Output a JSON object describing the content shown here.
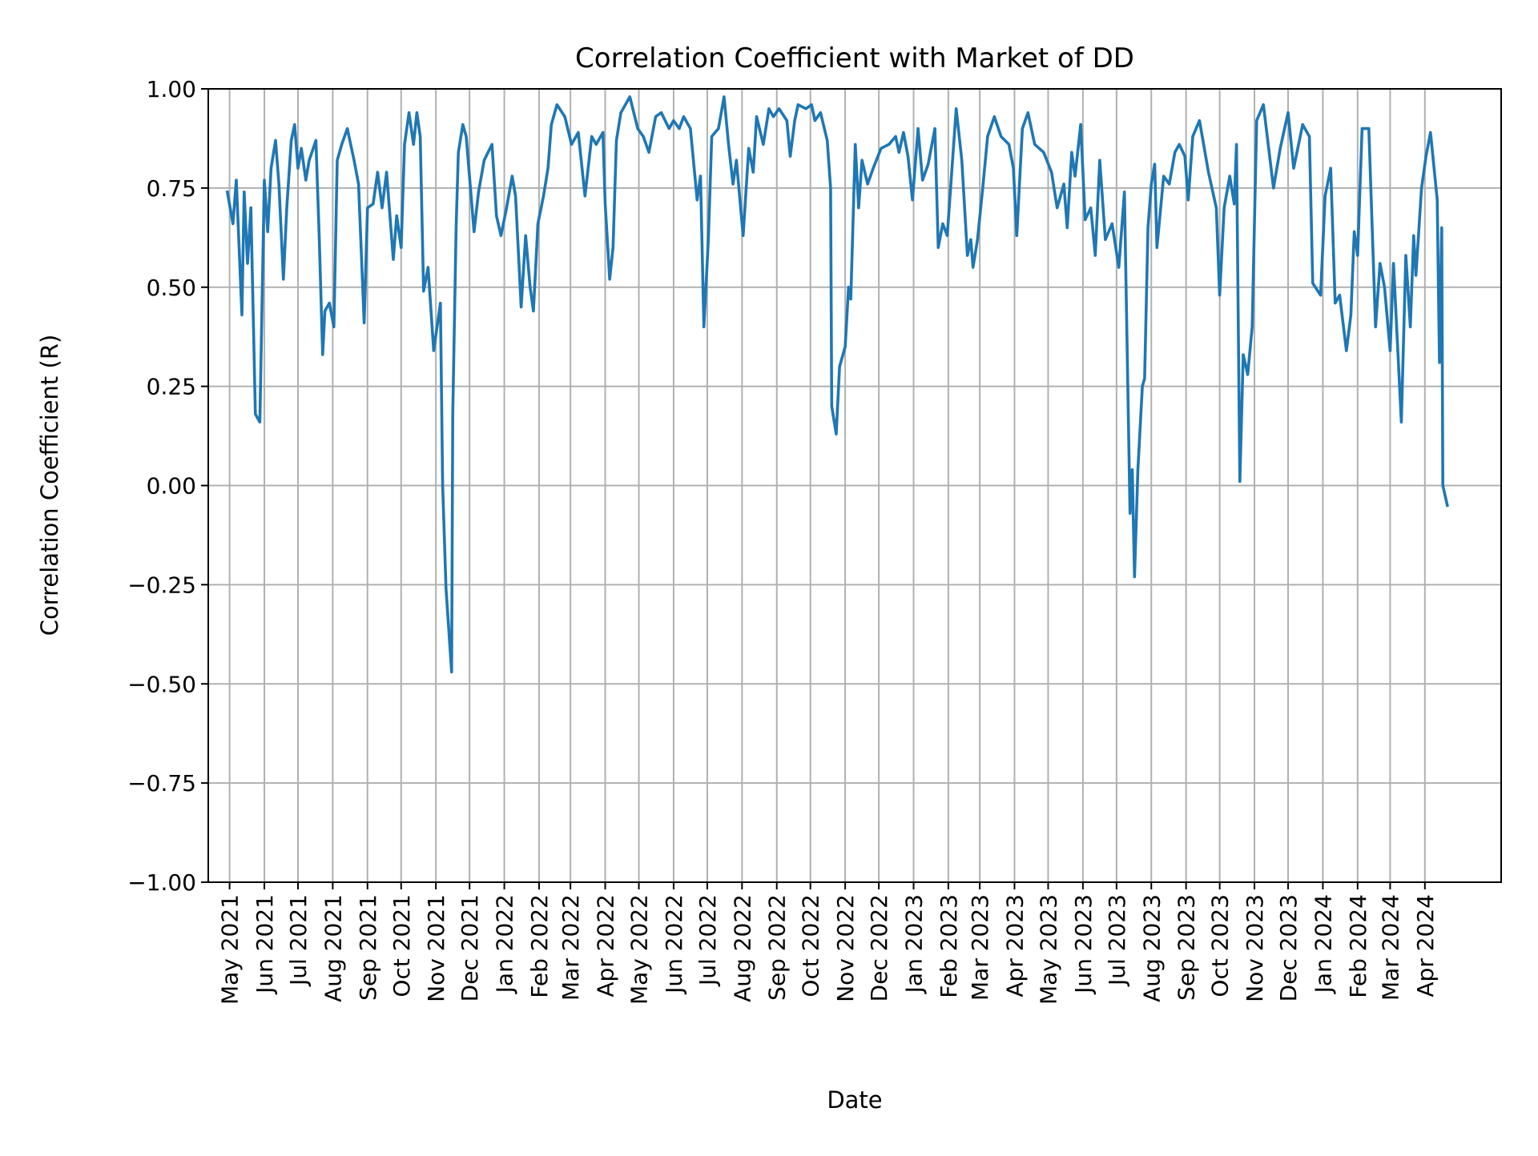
{
  "chart_data": {
    "type": "line",
    "title": "Correlation Coefficient with Market of DD",
    "xlabel": "Date",
    "ylabel": "Correlation Coefficient (R)",
    "ylim": [
      -1.0,
      1.0
    ],
    "yticks": [
      "−1.00",
      "−0.75",
      "−0.50",
      "−0.25",
      "0.00",
      "0.25",
      "0.50",
      "0.75",
      "1.00"
    ],
    "ytick_values": [
      -1.0,
      -0.75,
      -0.5,
      -0.25,
      0.0,
      0.25,
      0.5,
      0.75,
      1.0
    ],
    "xticks": [
      "May 2021",
      "Jun 2021",
      "Jul 2021",
      "Aug 2021",
      "Sep 2021",
      "Oct 2021",
      "Nov 2021",
      "Dec 2021",
      "Jan 2022",
      "Feb 2022",
      "Mar 2022",
      "Apr 2022",
      "May 2022",
      "Jun 2022",
      "Jul 2022",
      "Aug 2022",
      "Sep 2022",
      "Oct 2022",
      "Nov 2022",
      "Dec 2022",
      "Jan 2023",
      "Feb 2023",
      "Mar 2023",
      "Apr 2023",
      "May 2023",
      "Jun 2023",
      "Jul 2023",
      "Aug 2023",
      "Sep 2023",
      "Oct 2023",
      "Nov 2023",
      "Dec 2023",
      "Jan 2024",
      "Feb 2024",
      "Mar 2024",
      "Apr 2024"
    ],
    "xtick_dates": [
      "2021-05-01",
      "2021-06-01",
      "2021-07-01",
      "2021-08-01",
      "2021-09-01",
      "2021-10-01",
      "2021-11-01",
      "2021-12-01",
      "2022-01-01",
      "2022-02-01",
      "2022-03-01",
      "2022-04-01",
      "2022-05-01",
      "2022-06-01",
      "2022-07-01",
      "2022-08-01",
      "2022-09-01",
      "2022-10-01",
      "2022-11-01",
      "2022-12-01",
      "2023-01-01",
      "2023-02-01",
      "2023-03-01",
      "2023-04-01",
      "2023-05-01",
      "2023-06-01",
      "2023-07-01",
      "2023-08-01",
      "2023-09-01",
      "2023-10-01",
      "2023-11-01",
      "2023-12-01",
      "2024-01-01",
      "2024-02-01",
      "2024-03-01",
      "2024-04-01"
    ],
    "xlim": [
      "2021-04-12",
      "2024-06-08"
    ],
    "grid": true,
    "line_color": "#1f77b4",
    "grid_color": "#b0b0b0",
    "series": [
      {
        "x": [
          "2021-04-29",
          "2021-05-04",
          "2021-05-07",
          "2021-05-12",
          "2021-05-14",
          "2021-05-17",
          "2021-05-20",
          "2021-05-24",
          "2021-05-28",
          "2021-06-01",
          "2021-06-04",
          "2021-06-07",
          "2021-06-11",
          "2021-06-14",
          "2021-06-18",
          "2021-06-21",
          "2021-06-25",
          "2021-06-28",
          "2021-07-01",
          "2021-07-04",
          "2021-07-08",
          "2021-07-11",
          "2021-07-17",
          "2021-07-20",
          "2021-07-23",
          "2021-07-25",
          "2021-07-29",
          "2021-08-02",
          "2021-08-05",
          "2021-08-09",
          "2021-08-14",
          "2021-08-20",
          "2021-08-24",
          "2021-08-29",
          "2021-09-01",
          "2021-09-06",
          "2021-09-10",
          "2021-09-14",
          "2021-09-18",
          "2021-09-24",
          "2021-09-27",
          "2021-10-01",
          "2021-10-04",
          "2021-10-08",
          "2021-10-12",
          "2021-10-15",
          "2021-10-18",
          "2021-10-21",
          "2021-10-25",
          "2021-10-30",
          "2021-11-05",
          "2021-11-07",
          "2021-11-10",
          "2021-11-15",
          "2021-11-16",
          "2021-11-19",
          "2021-11-21",
          "2021-11-25",
          "2021-11-28",
          "2021-12-05",
          "2021-12-09",
          "2021-12-14",
          "2021-12-21",
          "2021-12-25",
          "2021-12-29",
          "2022-01-03",
          "2022-01-08",
          "2022-01-11",
          "2022-01-16",
          "2022-01-20",
          "2022-01-24",
          "2022-01-27",
          "2022-01-31",
          "2022-02-05",
          "2022-02-09",
          "2022-02-12",
          "2022-02-17",
          "2022-02-24",
          "2022-03-02",
          "2022-03-08",
          "2022-03-14",
          "2022-03-16",
          "2022-03-20",
          "2022-03-24",
          "2022-03-30",
          "2022-04-01",
          "2022-04-05",
          "2022-04-08",
          "2022-04-11",
          "2022-04-15",
          "2022-04-23",
          "2022-04-30",
          "2022-05-05",
          "2022-05-10",
          "2022-05-16",
          "2022-05-21",
          "2022-05-28",
          "2022-06-01",
          "2022-06-06",
          "2022-06-10",
          "2022-06-16",
          "2022-06-22",
          "2022-06-25",
          "2022-06-28",
          "2022-07-02",
          "2022-07-05",
          "2022-07-11",
          "2022-07-16",
          "2022-07-20",
          "2022-07-24",
          "2022-07-27",
          "2022-08-02",
          "2022-08-07",
          "2022-08-11",
          "2022-08-14",
          "2022-08-20",
          "2022-08-25",
          "2022-08-29",
          "2022-09-03",
          "2022-09-10",
          "2022-09-13",
          "2022-09-17",
          "2022-09-20",
          "2022-09-27",
          "2022-10-02",
          "2022-10-05",
          "2022-10-10",
          "2022-10-16",
          "2022-10-19",
          "2022-10-20",
          "2022-10-24",
          "2022-10-27",
          "2022-11-01",
          "2022-11-04",
          "2022-11-06",
          "2022-11-10",
          "2022-11-13",
          "2022-11-16",
          "2022-11-21",
          "2022-11-26",
          "2022-12-03",
          "2022-12-10",
          "2022-12-16",
          "2022-12-19",
          "2022-12-23",
          "2022-12-27",
          "2022-12-31",
          "2023-01-05",
          "2023-01-09",
          "2023-01-14",
          "2023-01-20",
          "2023-01-23",
          "2023-01-27",
          "2023-01-31",
          "2023-02-08",
          "2023-02-13",
          "2023-02-18",
          "2023-02-21",
          "2023-02-23",
          "2023-02-27",
          "2023-03-04",
          "2023-03-08",
          "2023-03-14",
          "2023-03-20",
          "2023-03-27",
          "2023-03-31",
          "2023-04-03",
          "2023-04-08",
          "2023-04-13",
          "2023-04-19",
          "2023-04-27",
          "2023-05-04",
          "2023-05-09",
          "2023-05-15",
          "2023-05-18",
          "2023-05-22",
          "2023-05-25",
          "2023-05-30",
          "2023-06-03",
          "2023-06-08",
          "2023-06-12",
          "2023-06-16",
          "2023-06-21",
          "2023-06-27",
          "2023-07-03",
          "2023-07-08",
          "2023-07-13",
          "2023-07-15",
          "2023-07-17",
          "2023-07-20",
          "2023-07-24",
          "2023-07-26",
          "2023-07-29",
          "2023-08-01",
          "2023-08-04",
          "2023-08-06",
          "2023-08-12",
          "2023-08-17",
          "2023-08-22",
          "2023-08-26",
          "2023-08-31",
          "2023-09-03",
          "2023-09-07",
          "2023-09-13",
          "2023-09-21",
          "2023-09-28",
          "2023-10-01",
          "2023-10-05",
          "2023-10-10",
          "2023-10-14",
          "2023-10-16",
          "2023-10-19",
          "2023-10-22",
          "2023-10-26",
          "2023-10-30",
          "2023-11-03",
          "2023-11-09",
          "2023-11-18",
          "2023-11-24",
          "2023-12-01",
          "2023-12-06",
          "2023-12-14",
          "2023-12-20",
          "2023-12-23",
          "2023-12-30",
          "2024-01-03",
          "2024-01-08",
          "2024-01-12",
          "2024-01-16",
          "2024-01-22",
          "2024-01-26",
          "2024-01-29",
          "2024-02-01",
          "2024-02-05",
          "2024-02-11",
          "2024-02-17",
          "2024-02-21",
          "2024-02-25",
          "2024-03-01",
          "2024-03-04",
          "2024-03-11",
          "2024-03-15",
          "2024-03-19",
          "2024-03-22",
          "2024-03-24",
          "2024-03-29",
          "2024-04-02",
          "2024-04-06",
          "2024-04-12",
          "2024-04-14",
          "2024-04-16",
          "2024-04-17",
          "2024-04-21"
        ],
        "y": [
          0.74,
          0.66,
          0.77,
          0.43,
          0.74,
          0.56,
          0.7,
          0.18,
          0.16,
          0.77,
          0.64,
          0.8,
          0.87,
          0.76,
          0.52,
          0.7,
          0.87,
          0.91,
          0.8,
          0.85,
          0.77,
          0.82,
          0.87,
          0.62,
          0.33,
          0.44,
          0.46,
          0.4,
          0.82,
          0.86,
          0.9,
          0.82,
          0.76,
          0.41,
          0.7,
          0.71,
          0.79,
          0.7,
          0.79,
          0.57,
          0.68,
          0.6,
          0.86,
          0.94,
          0.86,
          0.94,
          0.88,
          0.49,
          0.55,
          0.34,
          0.46,
          0.0,
          -0.26,
          -0.47,
          0.18,
          0.65,
          0.84,
          0.91,
          0.88,
          0.64,
          0.74,
          0.82,
          0.86,
          0.68,
          0.63,
          0.7,
          0.78,
          0.73,
          0.45,
          0.63,
          0.5,
          0.44,
          0.66,
          0.73,
          0.8,
          0.91,
          0.96,
          0.93,
          0.86,
          0.89,
          0.73,
          0.78,
          0.88,
          0.86,
          0.89,
          0.71,
          0.52,
          0.6,
          0.87,
          0.94,
          0.98,
          0.9,
          0.88,
          0.84,
          0.93,
          0.94,
          0.9,
          0.92,
          0.9,
          0.93,
          0.9,
          0.72,
          0.78,
          0.4,
          0.62,
          0.88,
          0.9,
          0.98,
          0.86,
          0.76,
          0.82,
          0.63,
          0.85,
          0.79,
          0.93,
          0.86,
          0.95,
          0.93,
          0.95,
          0.92,
          0.83,
          0.92,
          0.96,
          0.95,
          0.96,
          0.92,
          0.94,
          0.87,
          0.75,
          0.2,
          0.13,
          0.3,
          0.35,
          0.5,
          0.47,
          0.86,
          0.7,
          0.82,
          0.76,
          0.8,
          0.85,
          0.86,
          0.88,
          0.84,
          0.89,
          0.83,
          0.72,
          0.9,
          0.77,
          0.81,
          0.9,
          0.6,
          0.66,
          0.63,
          0.95,
          0.82,
          0.58,
          0.62,
          0.55,
          0.62,
          0.76,
          0.88,
          0.93,
          0.88,
          0.86,
          0.8,
          0.63,
          0.9,
          0.94,
          0.86,
          0.84,
          0.79,
          0.7,
          0.76,
          0.65,
          0.84,
          0.78,
          0.91,
          0.67,
          0.7,
          0.58,
          0.82,
          0.62,
          0.66,
          0.55,
          0.74,
          -0.07,
          0.04,
          -0.23,
          0.04,
          0.25,
          0.27,
          0.65,
          0.76,
          0.81,
          0.6,
          0.78,
          0.76,
          0.84,
          0.86,
          0.83,
          0.72,
          0.88,
          0.92,
          0.79,
          0.7,
          0.48,
          0.7,
          0.78,
          0.71,
          0.86,
          0.01,
          0.33,
          0.28,
          0.4,
          0.92,
          0.96,
          0.75,
          0.85,
          0.94,
          0.8,
          0.91,
          0.88,
          0.51,
          0.48,
          0.73,
          0.8,
          0.46,
          0.48,
          0.34,
          0.43,
          0.64,
          0.58,
          0.9,
          0.9,
          0.4,
          0.56,
          0.5,
          0.34,
          0.56,
          0.16,
          0.58,
          0.4,
          0.63,
          0.53,
          0.75,
          0.83,
          0.89,
          0.72,
          0.31,
          0.65,
          0.0,
          -0.05
        ]
      }
    ]
  }
}
